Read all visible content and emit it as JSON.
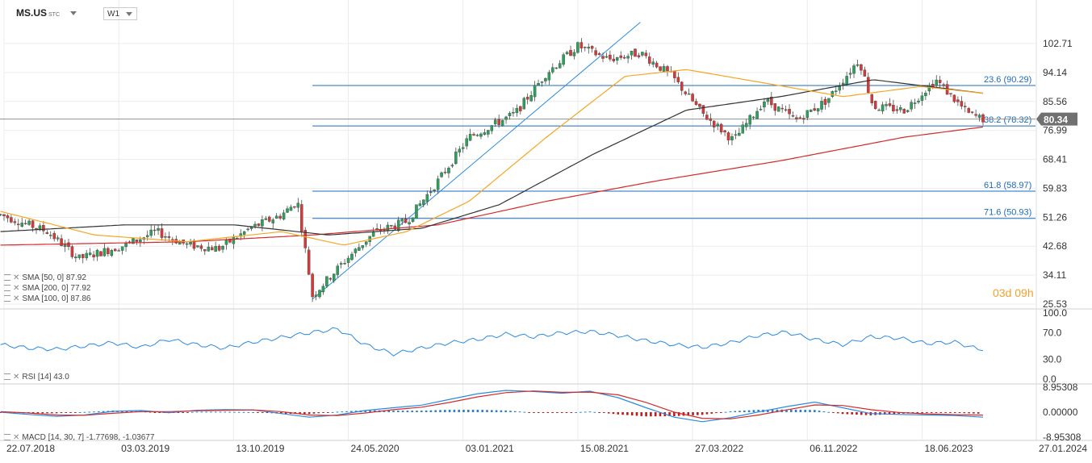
{
  "header": {
    "symbol": "MS.US",
    "symbol_suffix": "STC",
    "timeframe": "W1"
  },
  "indicators": {
    "sma50": "SMA [50, 0] 87.92",
    "sma200": "SMA [200, 0] 77.92",
    "sma100": "SMA [100, 0] 87.86",
    "rsi": "RSI [14] 43.0",
    "macd": "MACD [14, 30, 7] -1.77698, -1.03677"
  },
  "countdown": {
    "days": "03",
    "d": "d",
    "hours": "09",
    "h": "h"
  },
  "colors": {
    "up": "#2e9e5b",
    "down": "#d43a3a",
    "sma50": "#f5a623",
    "sma100": "#333333",
    "sma200": "#d42a2a",
    "fib": "#1e6bb8",
    "trend": "#2a8ae0",
    "rsi": "#2a8ae0",
    "macd": "#2a8ae0",
    "signal": "#d42a2a",
    "price_tag": "#707070"
  },
  "chart_data": {
    "type": "candlestick",
    "x_ticks": [
      "22.07.2018",
      "03.03.2019",
      "13.10.2019",
      "24.05.2020",
      "03.01.2021",
      "15.08.2021",
      "27.03.2022",
      "06.11.2022",
      "18.06.2023",
      "27.01.2024"
    ],
    "y_ticks": [
      "102.71",
      "94.14",
      "85.56",
      "76.99",
      "68.41",
      "59.83",
      "51.26",
      "42.68",
      "34.11",
      "25.53"
    ],
    "ylim": [
      25.53,
      102.71
    ],
    "current_price": "80.34",
    "fib_levels": [
      {
        "label": "23.6 (90.29)",
        "value": 90.29
      },
      {
        "label": "38.2 (78.32)",
        "value": 78.32
      },
      {
        "label": "61.8 (58.97)",
        "value": 58.97
      },
      {
        "label": "71.6 (50.93)",
        "value": 50.93
      }
    ],
    "trend_line": {
      "from": [
        "2020-03",
        27.0
      ],
      "to": [
        "2021-12",
        109.0
      ]
    },
    "price_path": [
      [
        "2018-07",
        52.0
      ],
      [
        "2018-10",
        47.0
      ],
      [
        "2018-12",
        39.0
      ],
      [
        "2019-03",
        43.0
      ],
      [
        "2019-05",
        47.0
      ],
      [
        "2019-07",
        43.0
      ],
      [
        "2019-09",
        42.0
      ],
      [
        "2019-11",
        48.0
      ],
      [
        "2020-01",
        52.0
      ],
      [
        "2020-02",
        56.0
      ],
      [
        "2020-03",
        28.0
      ],
      [
        "2020-05",
        38.0
      ],
      [
        "2020-07",
        47.0
      ],
      [
        "2020-09",
        50.0
      ],
      [
        "2020-11",
        62.0
      ],
      [
        "2021-01",
        75.0
      ],
      [
        "2021-04",
        82.0
      ],
      [
        "2021-06",
        94.0
      ],
      [
        "2021-08",
        102.0
      ],
      [
        "2021-10",
        98.0
      ],
      [
        "2021-12",
        100.0
      ],
      [
        "2022-02",
        93.0
      ],
      [
        "2022-04",
        82.0
      ],
      [
        "2022-06",
        74.0
      ],
      [
        "2022-08",
        86.0
      ],
      [
        "2022-10",
        80.0
      ],
      [
        "2022-12",
        86.0
      ],
      [
        "2023-02",
        98.0
      ],
      [
        "2023-03",
        84.0
      ],
      [
        "2023-05",
        83.0
      ],
      [
        "2023-07",
        92.0
      ],
      [
        "2023-09",
        82.0
      ],
      [
        "2023-10",
        80.34
      ]
    ],
    "sma50": [
      [
        "2018-07",
        53
      ],
      [
        "2019-01",
        46
      ],
      [
        "2019-07",
        44
      ],
      [
        "2020-01",
        47
      ],
      [
        "2020-05",
        43
      ],
      [
        "2020-09",
        47
      ],
      [
        "2021-01",
        56
      ],
      [
        "2021-06",
        75
      ],
      [
        "2021-11",
        93
      ],
      [
        "2022-03",
        95
      ],
      [
        "2022-08",
        91
      ],
      [
        "2023-01",
        87
      ],
      [
        "2023-06",
        90
      ],
      [
        "2023-10",
        88
      ]
    ],
    "sma100": [
      [
        "2018-07",
        47
      ],
      [
        "2019-03",
        49
      ],
      [
        "2019-10",
        49
      ],
      [
        "2020-04",
        46
      ],
      [
        "2020-10",
        48
      ],
      [
        "2021-03",
        55
      ],
      [
        "2021-09",
        70
      ],
      [
        "2022-03",
        83
      ],
      [
        "2022-09",
        87
      ],
      [
        "2023-03",
        92
      ],
      [
        "2023-10",
        88
      ]
    ],
    "sma200": [
      [
        "2018-07",
        43
      ],
      [
        "2019-07",
        44
      ],
      [
        "2020-03",
        46
      ],
      [
        "2020-11",
        49
      ],
      [
        "2021-06",
        56
      ],
      [
        "2022-01",
        62
      ],
      [
        "2022-09",
        68
      ],
      [
        "2023-05",
        75
      ],
      [
        "2023-10",
        78
      ]
    ],
    "rsi": {
      "y_ticks": [
        "100.0",
        "70.0",
        "30.0",
        "0.0"
      ],
      "values": [
        52,
        47,
        45,
        50,
        55,
        48,
        60,
        52,
        47,
        56,
        63,
        70,
        76,
        52,
        38,
        47,
        55,
        60,
        68,
        64,
        70,
        72,
        66,
        58,
        52,
        48,
        55,
        66,
        71,
        60,
        52,
        64,
        62,
        54,
        56,
        43
      ]
    },
    "macd": {
      "y_ticks": [
        "8.95308",
        "0.00000",
        "-8.95308"
      ],
      "values": [
        0.0,
        -0.8,
        -1.5,
        -1.0,
        0.3,
        0.6,
        -0.2,
        0.7,
        0.9,
        0.8,
        -0.5,
        -1.8,
        -1.0,
        0.6,
        1.6,
        2.5,
        4.6,
        6.6,
        7.8,
        7.4,
        6.8,
        7.5,
        5.2,
        1.6,
        -1.8,
        -3.4,
        -2.0,
        0.1,
        2.0,
        3.6,
        1.6,
        -0.5,
        -0.8,
        -1.0,
        -1.2,
        -1.78
      ],
      "signal": [
        0.2,
        -0.3,
        -1.0,
        -1.1,
        -0.4,
        0.2,
        0.2,
        0.5,
        0.7,
        0.8,
        0.2,
        -1.0,
        -1.2,
        -0.3,
        0.9,
        1.8,
        3.5,
        5.5,
        7.0,
        7.6,
        7.1,
        7.2,
        6.2,
        3.5,
        0.0,
        -2.2,
        -2.4,
        -1.0,
        0.8,
        2.6,
        2.4,
        0.9,
        -0.1,
        -0.6,
        -0.9,
        -1.04
      ]
    }
  }
}
